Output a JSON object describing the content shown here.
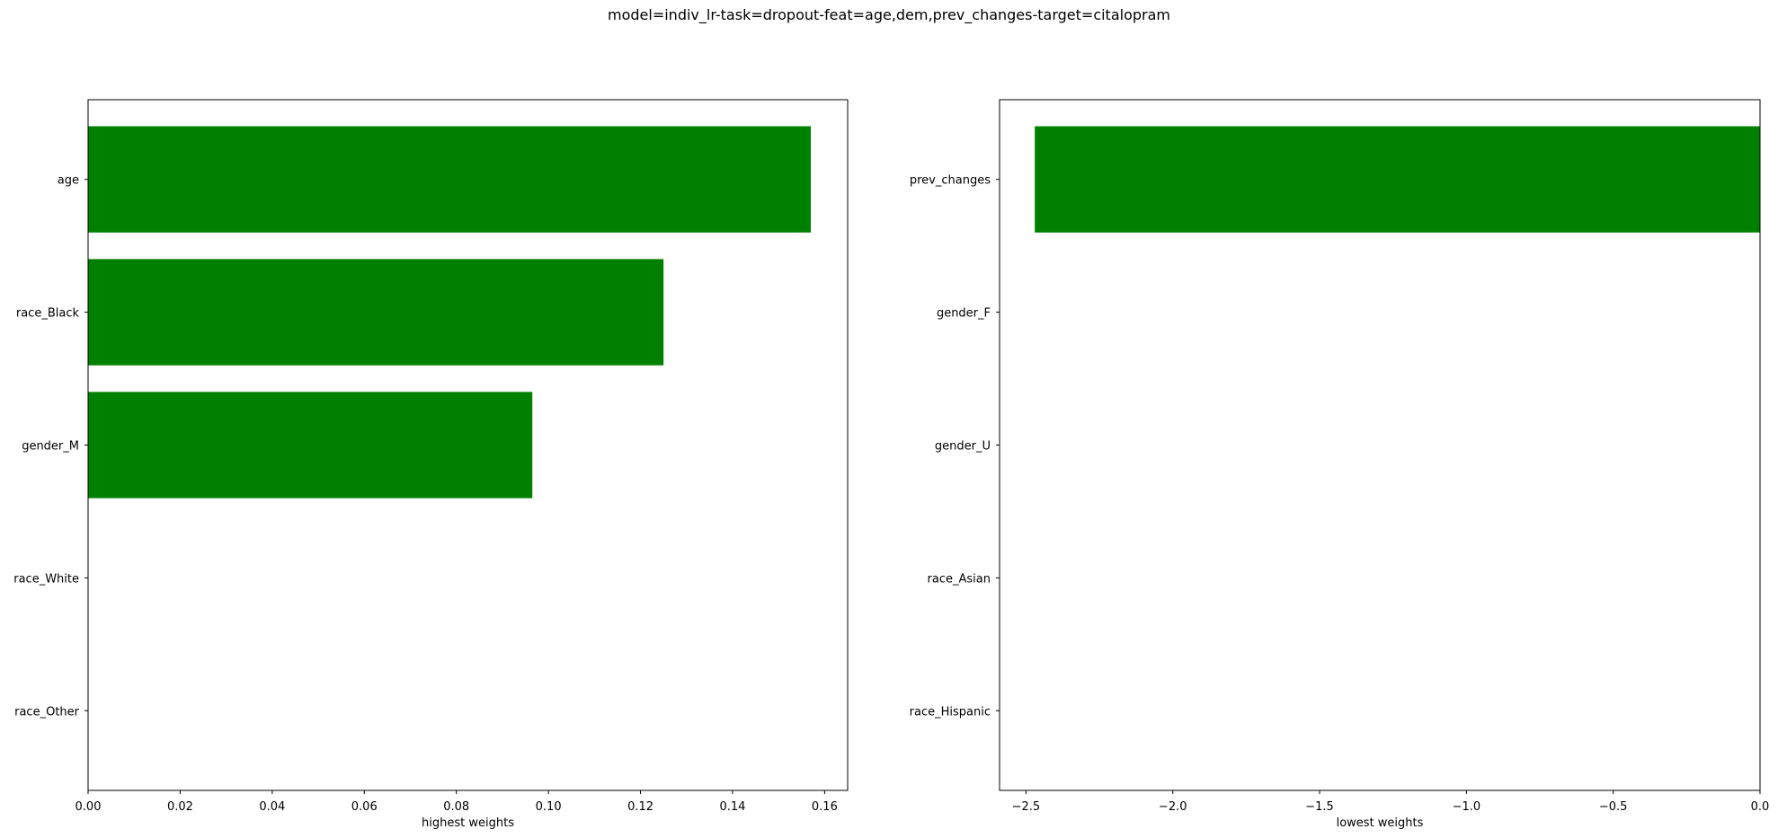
{
  "figure": {
    "title": "model=indiv_lr-task=dropout-feat=age,dem,prev_changes-target=citalopram"
  },
  "chart_data": [
    {
      "type": "bar",
      "orientation": "horizontal",
      "categories": [
        "age",
        "race_Black",
        "gender_M",
        "race_White",
        "race_Other"
      ],
      "values": [
        0.157,
        0.125,
        0.0965,
        0.0,
        0.0
      ],
      "xlabel": "highest weights",
      "ylabel": "",
      "xlim": [
        0,
        0.165
      ],
      "xticks": [
        0.0,
        0.02,
        0.04,
        0.06,
        0.08,
        0.1,
        0.12,
        0.14,
        0.16
      ],
      "xtick_labels": [
        "0.00",
        "0.02",
        "0.04",
        "0.06",
        "0.08",
        "0.10",
        "0.12",
        "0.14",
        "0.16"
      ],
      "color": "#008000",
      "grid": false
    },
    {
      "type": "bar",
      "orientation": "horizontal",
      "categories": [
        "prev_changes",
        "gender_F",
        "gender_U",
        "race_Asian",
        "race_Hispanic"
      ],
      "values": [
        -2.47,
        0.0,
        0.0,
        0.0,
        0.0
      ],
      "xlabel": "lowest weights",
      "ylabel": "",
      "xlim": [
        -2.59,
        0
      ],
      "xticks": [
        -2.5,
        -2.0,
        -1.5,
        -1.0,
        -0.5,
        0.0
      ],
      "xtick_labels": [
        "−2.5",
        "−2.0",
        "−1.5",
        "−1.0",
        "−0.5",
        "0.0"
      ],
      "color": "#008000",
      "grid": false
    }
  ]
}
